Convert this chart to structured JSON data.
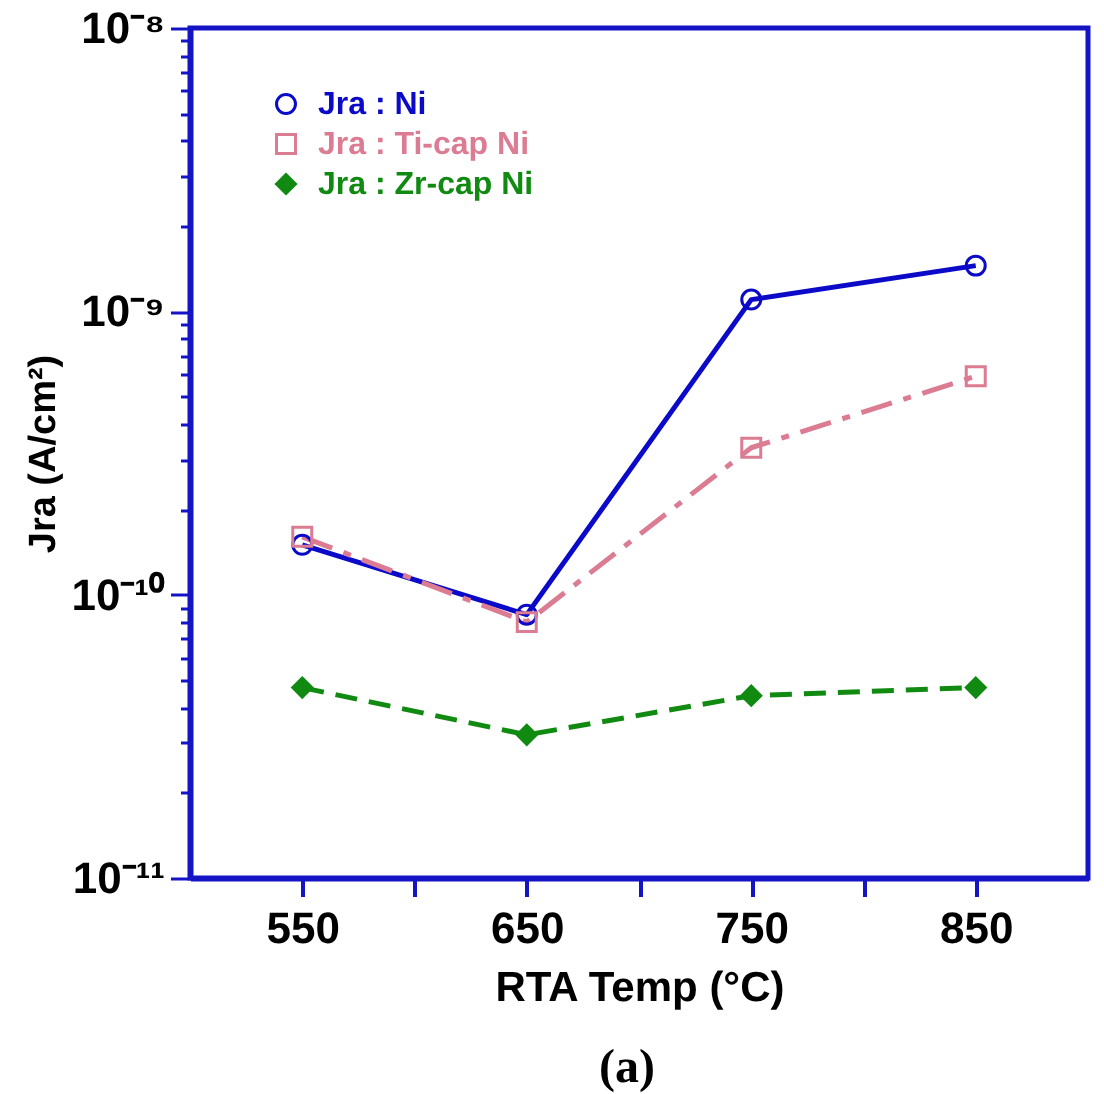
{
  "chart_data": {
    "type": "line",
    "xlabel": "RTA Temp (°C)",
    "ylabel": "Jra (A/cm²)",
    "annotations": [
      "(a)"
    ],
    "x": [
      550,
      650,
      750,
      850
    ],
    "xlim": [
      500,
      900
    ],
    "xticks": [
      550,
      {
        "value": 600,
        "label": null
      },
      650,
      {
        "value": 700,
        "label": null
      },
      750,
      {
        "value": 800,
        "label": null
      },
      850
    ],
    "ylim": [
      1e-11,
      1e-08
    ],
    "log": true,
    "yticks": [
      {
        "value": 1e-11,
        "label": "10⁻¹¹"
      },
      {
        "value": 2e-11,
        "label": null
      },
      {
        "value": 3e-11,
        "label": null
      },
      {
        "value": 4e-11,
        "label": null
      },
      {
        "value": 5e-11,
        "label": null
      },
      {
        "value": 6e-11,
        "label": null
      },
      {
        "value": 7e-11,
        "label": null
      },
      {
        "value": 8e-11,
        "label": null
      },
      {
        "value": 9e-11,
        "label": null
      },
      {
        "value": 1e-10,
        "label": "10⁻¹⁰"
      },
      {
        "value": 2e-10,
        "label": null
      },
      {
        "value": 3e-10,
        "label": null
      },
      {
        "value": 4e-10,
        "label": null
      },
      {
        "value": 5e-10,
        "label": null
      },
      {
        "value": 6e-10,
        "label": null
      },
      {
        "value": 7e-10,
        "label": null
      },
      {
        "value": 8e-10,
        "label": null
      },
      {
        "value": 9e-10,
        "label": null
      },
      {
        "value": 1e-09,
        "label": "10⁻⁹"
      },
      {
        "value": 2e-09,
        "label": null
      },
      {
        "value": 3e-09,
        "label": null
      },
      {
        "value": 4e-09,
        "label": null
      },
      {
        "value": 5e-09,
        "label": null
      },
      {
        "value": 6e-09,
        "label": null
      },
      {
        "value": 7e-09,
        "label": null
      },
      {
        "value": 8e-09,
        "label": null
      },
      {
        "value": 9e-09,
        "label": null
      },
      {
        "value": 1e-08,
        "label": "10⁻⁸"
      }
    ],
    "legend": "top left",
    "series": [
      {
        "name": "Jra : Ni",
        "color": "#0a0ac8",
        "marker": "circle",
        "line_style": "solid",
        "values": [
          1.5e-10,
          8.5e-11,
          1.1e-09,
          1.45e-09
        ]
      },
      {
        "name": "Jra : Ti-cap Ni",
        "color": "#db7c93",
        "marker": "square",
        "line_style": "dashdot",
        "values": [
          1.6e-10,
          8e-11,
          3.3e-10,
          5.9e-10
        ]
      },
      {
        "name": "Jra : Zr-cap Ni",
        "color": "#118a11",
        "marker": "diamond",
        "line_style": "dashed",
        "values": [
          4.7e-11,
          3.2e-11,
          4.4e-11,
          4.7e-11
        ]
      }
    ]
  }
}
